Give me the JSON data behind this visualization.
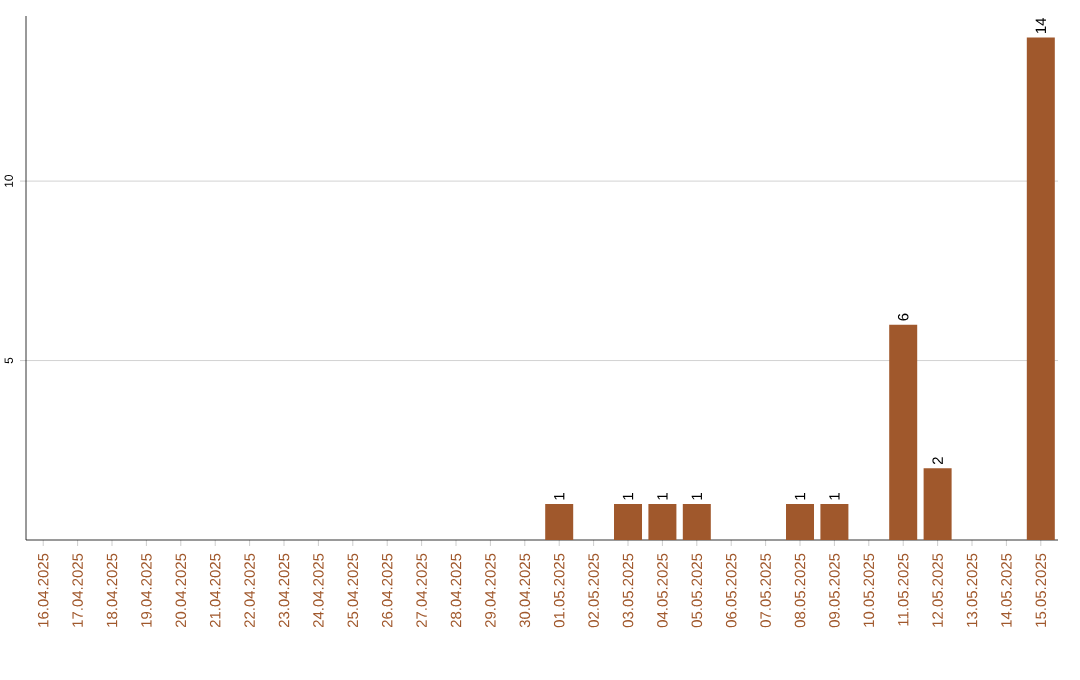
{
  "chart_data": {
    "type": "bar",
    "categories": [
      "16.04.2025",
      "17.04.2025",
      "18.04.2025",
      "19.04.2025",
      "20.04.2025",
      "21.04.2025",
      "22.04.2025",
      "23.04.2025",
      "24.04.2025",
      "25.04.2025",
      "26.04.2025",
      "27.04.2025",
      "28.04.2025",
      "29.04.2025",
      "30.04.2025",
      "01.05.2025",
      "02.05.2025",
      "03.05.2025",
      "04.05.2025",
      "05.05.2025",
      "06.05.2025",
      "07.05.2025",
      "08.05.2025",
      "09.05.2025",
      "10.05.2025",
      "11.05.2025",
      "12.05.2025",
      "13.05.2025",
      "14.05.2025",
      "15.05.2025"
    ],
    "values": [
      0,
      0,
      0,
      0,
      0,
      0,
      0,
      0,
      0,
      0,
      0,
      0,
      0,
      0,
      0,
      1,
      0,
      1,
      1,
      1,
      0,
      0,
      1,
      1,
      0,
      6,
      2,
      0,
      0,
      14
    ],
    "value_labels": [
      null,
      null,
      null,
      null,
      null,
      null,
      null,
      null,
      null,
      null,
      null,
      null,
      null,
      null,
      null,
      "1",
      null,
      "1",
      "1",
      "1",
      null,
      null,
      "1",
      "1",
      null,
      "6",
      "2",
      null,
      null,
      "14"
    ],
    "color": "#a0582c",
    "ylim": [
      0,
      14.6
    ],
    "yticks": [
      5,
      10
    ],
    "grid": "y"
  }
}
